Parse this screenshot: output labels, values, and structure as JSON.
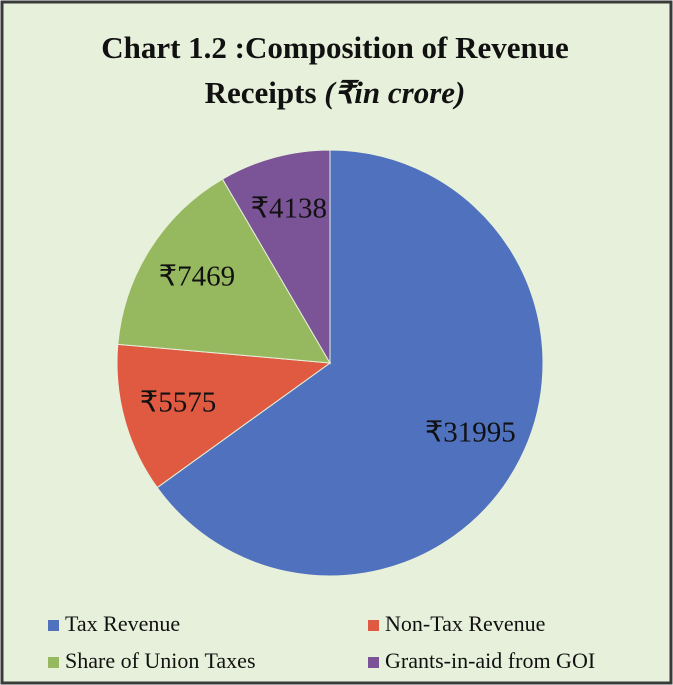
{
  "chart_data": {
    "type": "pie",
    "title": "Chart 1.2 :Composition of Revenue",
    "title_line2": "Receipts",
    "title_unit": "(₹in crore)",
    "categories": [
      "Tax Revenue",
      "Non-Tax Revenue",
      "Share of Union Taxes",
      "Grants-in-aid from GOI"
    ],
    "values": [
      31995,
      5575,
      7469,
      4138
    ],
    "value_labels": [
      "₹31995",
      "₹5575",
      "₹7469",
      "₹4138"
    ],
    "colors": [
      "#4f71be",
      "#e05a42",
      "#96b85f",
      "#7b5497"
    ],
    "legend": "bottom"
  }
}
